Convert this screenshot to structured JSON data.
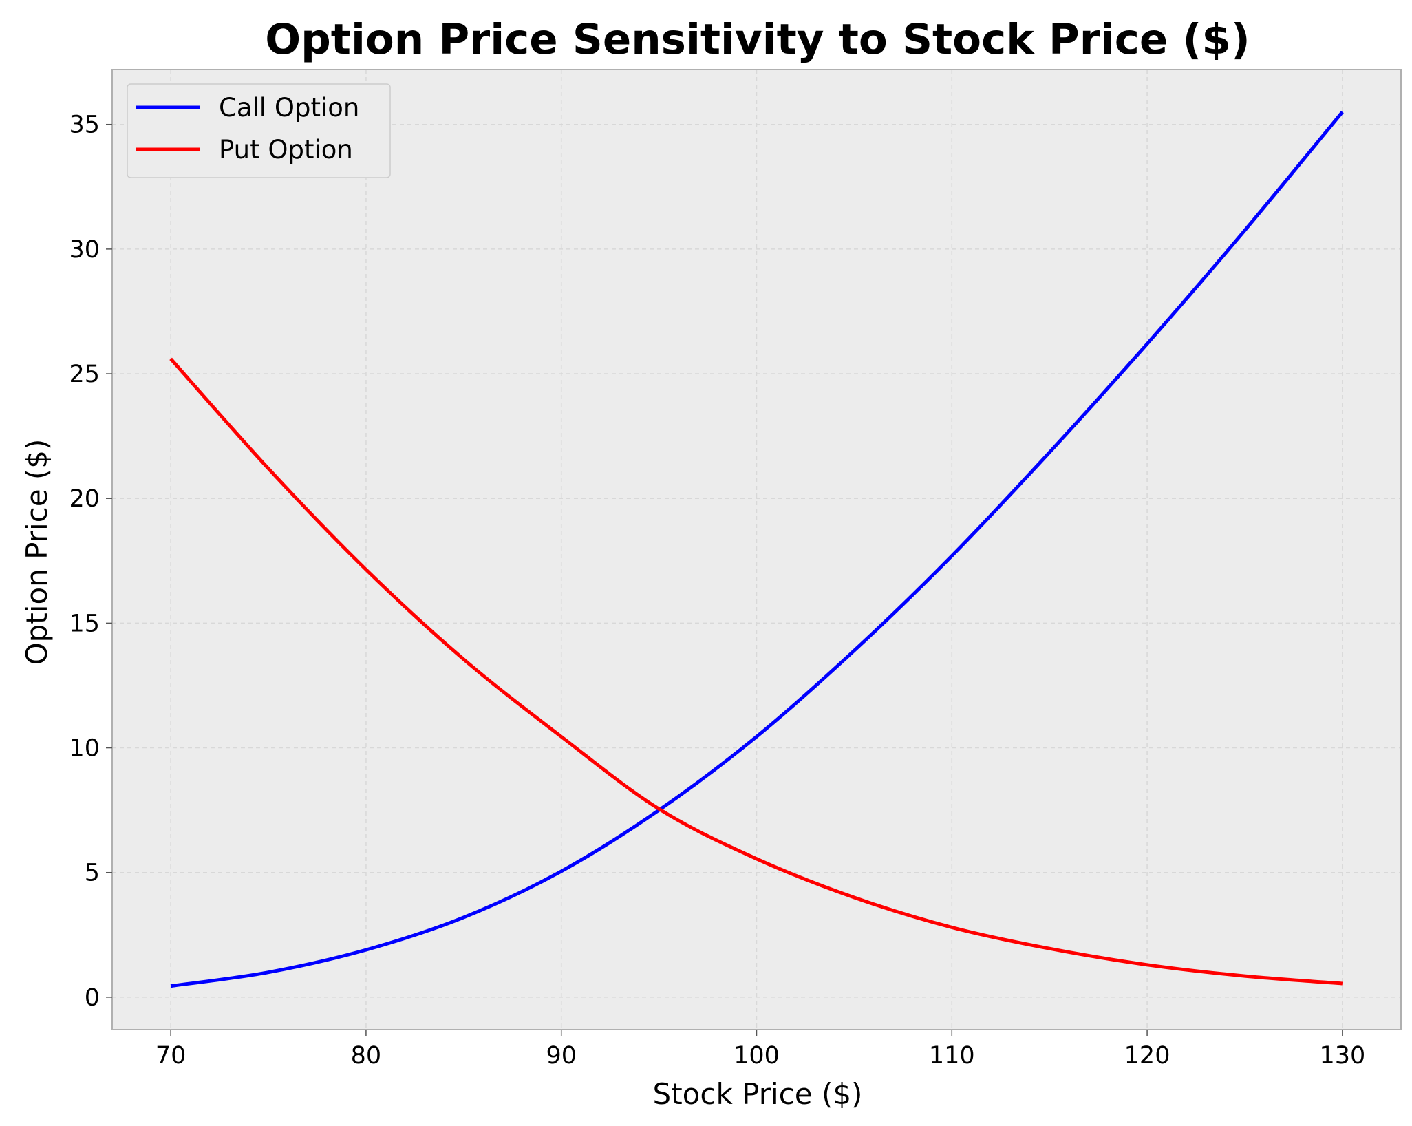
{
  "chart_data": {
    "type": "line",
    "title": "Option Price Sensitivity to Stock Price ($)",
    "xlabel": "Stock Price ($)",
    "ylabel": "Option Price ($)",
    "xlim": [
      67,
      133
    ],
    "ylim": [
      -1.3,
      37.2
    ],
    "xticks": [
      70,
      80,
      90,
      100,
      110,
      120,
      130
    ],
    "yticks": [
      0,
      5,
      10,
      15,
      20,
      25,
      30,
      35
    ],
    "grid": true,
    "legend_position": "upper left",
    "x": [
      70,
      75,
      80,
      85,
      90,
      95,
      100,
      105,
      110,
      115,
      120,
      125,
      130
    ],
    "series": [
      {
        "name": "Call Option",
        "color": "#0000ff",
        "values": [
          0.45,
          1.0,
          1.9,
          3.2,
          5.05,
          7.5,
          10.45,
          13.9,
          17.7,
          21.85,
          26.2,
          30.75,
          35.5
        ]
      },
      {
        "name": "Put Option",
        "color": "#ff0000",
        "values": [
          25.6,
          21.2,
          17.15,
          13.55,
          10.45,
          7.55,
          5.55,
          4.0,
          2.8,
          1.95,
          1.3,
          0.85,
          0.55
        ]
      }
    ]
  }
}
